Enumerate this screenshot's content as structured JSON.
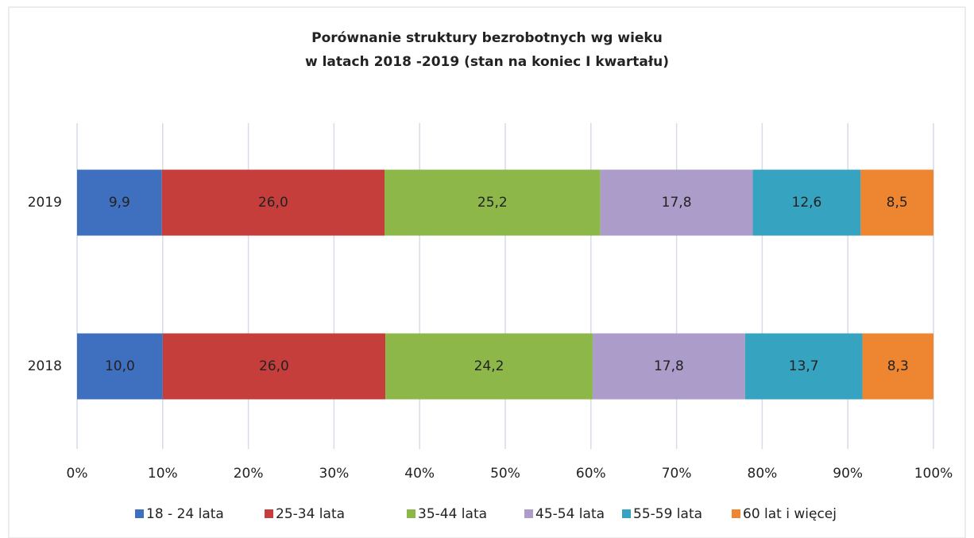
{
  "chart_data": {
    "type": "stacked_bar_horizontal",
    "title": [
      "Porównanie struktury bezrobotnych wg wieku",
      "w latach 2018 -2019 (stan na koniec I kwartału)"
    ],
    "categories": [
      "2019",
      "2018"
    ],
    "series": [
      {
        "name": "18 - 24 lata",
        "color": "#3f70bf",
        "values": [
          9.9,
          10.0
        ],
        "value_labels": [
          "9,9",
          "10,0"
        ]
      },
      {
        "name": "25-34 lata",
        "color": "#c63e3c",
        "values": [
          26.0,
          26.0
        ],
        "value_labels": [
          "26,0",
          "26,0"
        ]
      },
      {
        "name": "35-44 lata",
        "color": "#8db849",
        "values": [
          25.2,
          24.2
        ],
        "value_labels": [
          "25,2",
          "24,2"
        ]
      },
      {
        "name": "45-54 lata",
        "color": "#ab9cc9",
        "values": [
          17.8,
          17.8
        ],
        "value_labels": [
          "17,8",
          "17,8"
        ]
      },
      {
        "name": "55-59 lata",
        "color": "#36a3c1",
        "values": [
          12.6,
          13.7
        ],
        "value_labels": [
          "12,6",
          "13,7"
        ]
      },
      {
        "name": "60 lat i więcej",
        "color": "#ee8530",
        "values": [
          8.5,
          8.3
        ],
        "value_labels": [
          "8,5",
          "8,3"
        ]
      }
    ],
    "xlim": [
      0,
      100
    ],
    "xticks": [
      {
        "value": 0,
        "label": "0%"
      },
      {
        "value": 10,
        "label": "10%"
      },
      {
        "value": 20,
        "label": "20%"
      },
      {
        "value": 30,
        "label": "30%"
      },
      {
        "value": 40,
        "label": "40%"
      },
      {
        "value": 50,
        "label": "50%"
      },
      {
        "value": 60,
        "label": "60%"
      },
      {
        "value": 70,
        "label": "70%"
      },
      {
        "value": 80,
        "label": "80%"
      },
      {
        "value": 90,
        "label": "90%"
      },
      {
        "value": 100,
        "label": "100%"
      }
    ],
    "grid": true,
    "legend": "bottom"
  }
}
